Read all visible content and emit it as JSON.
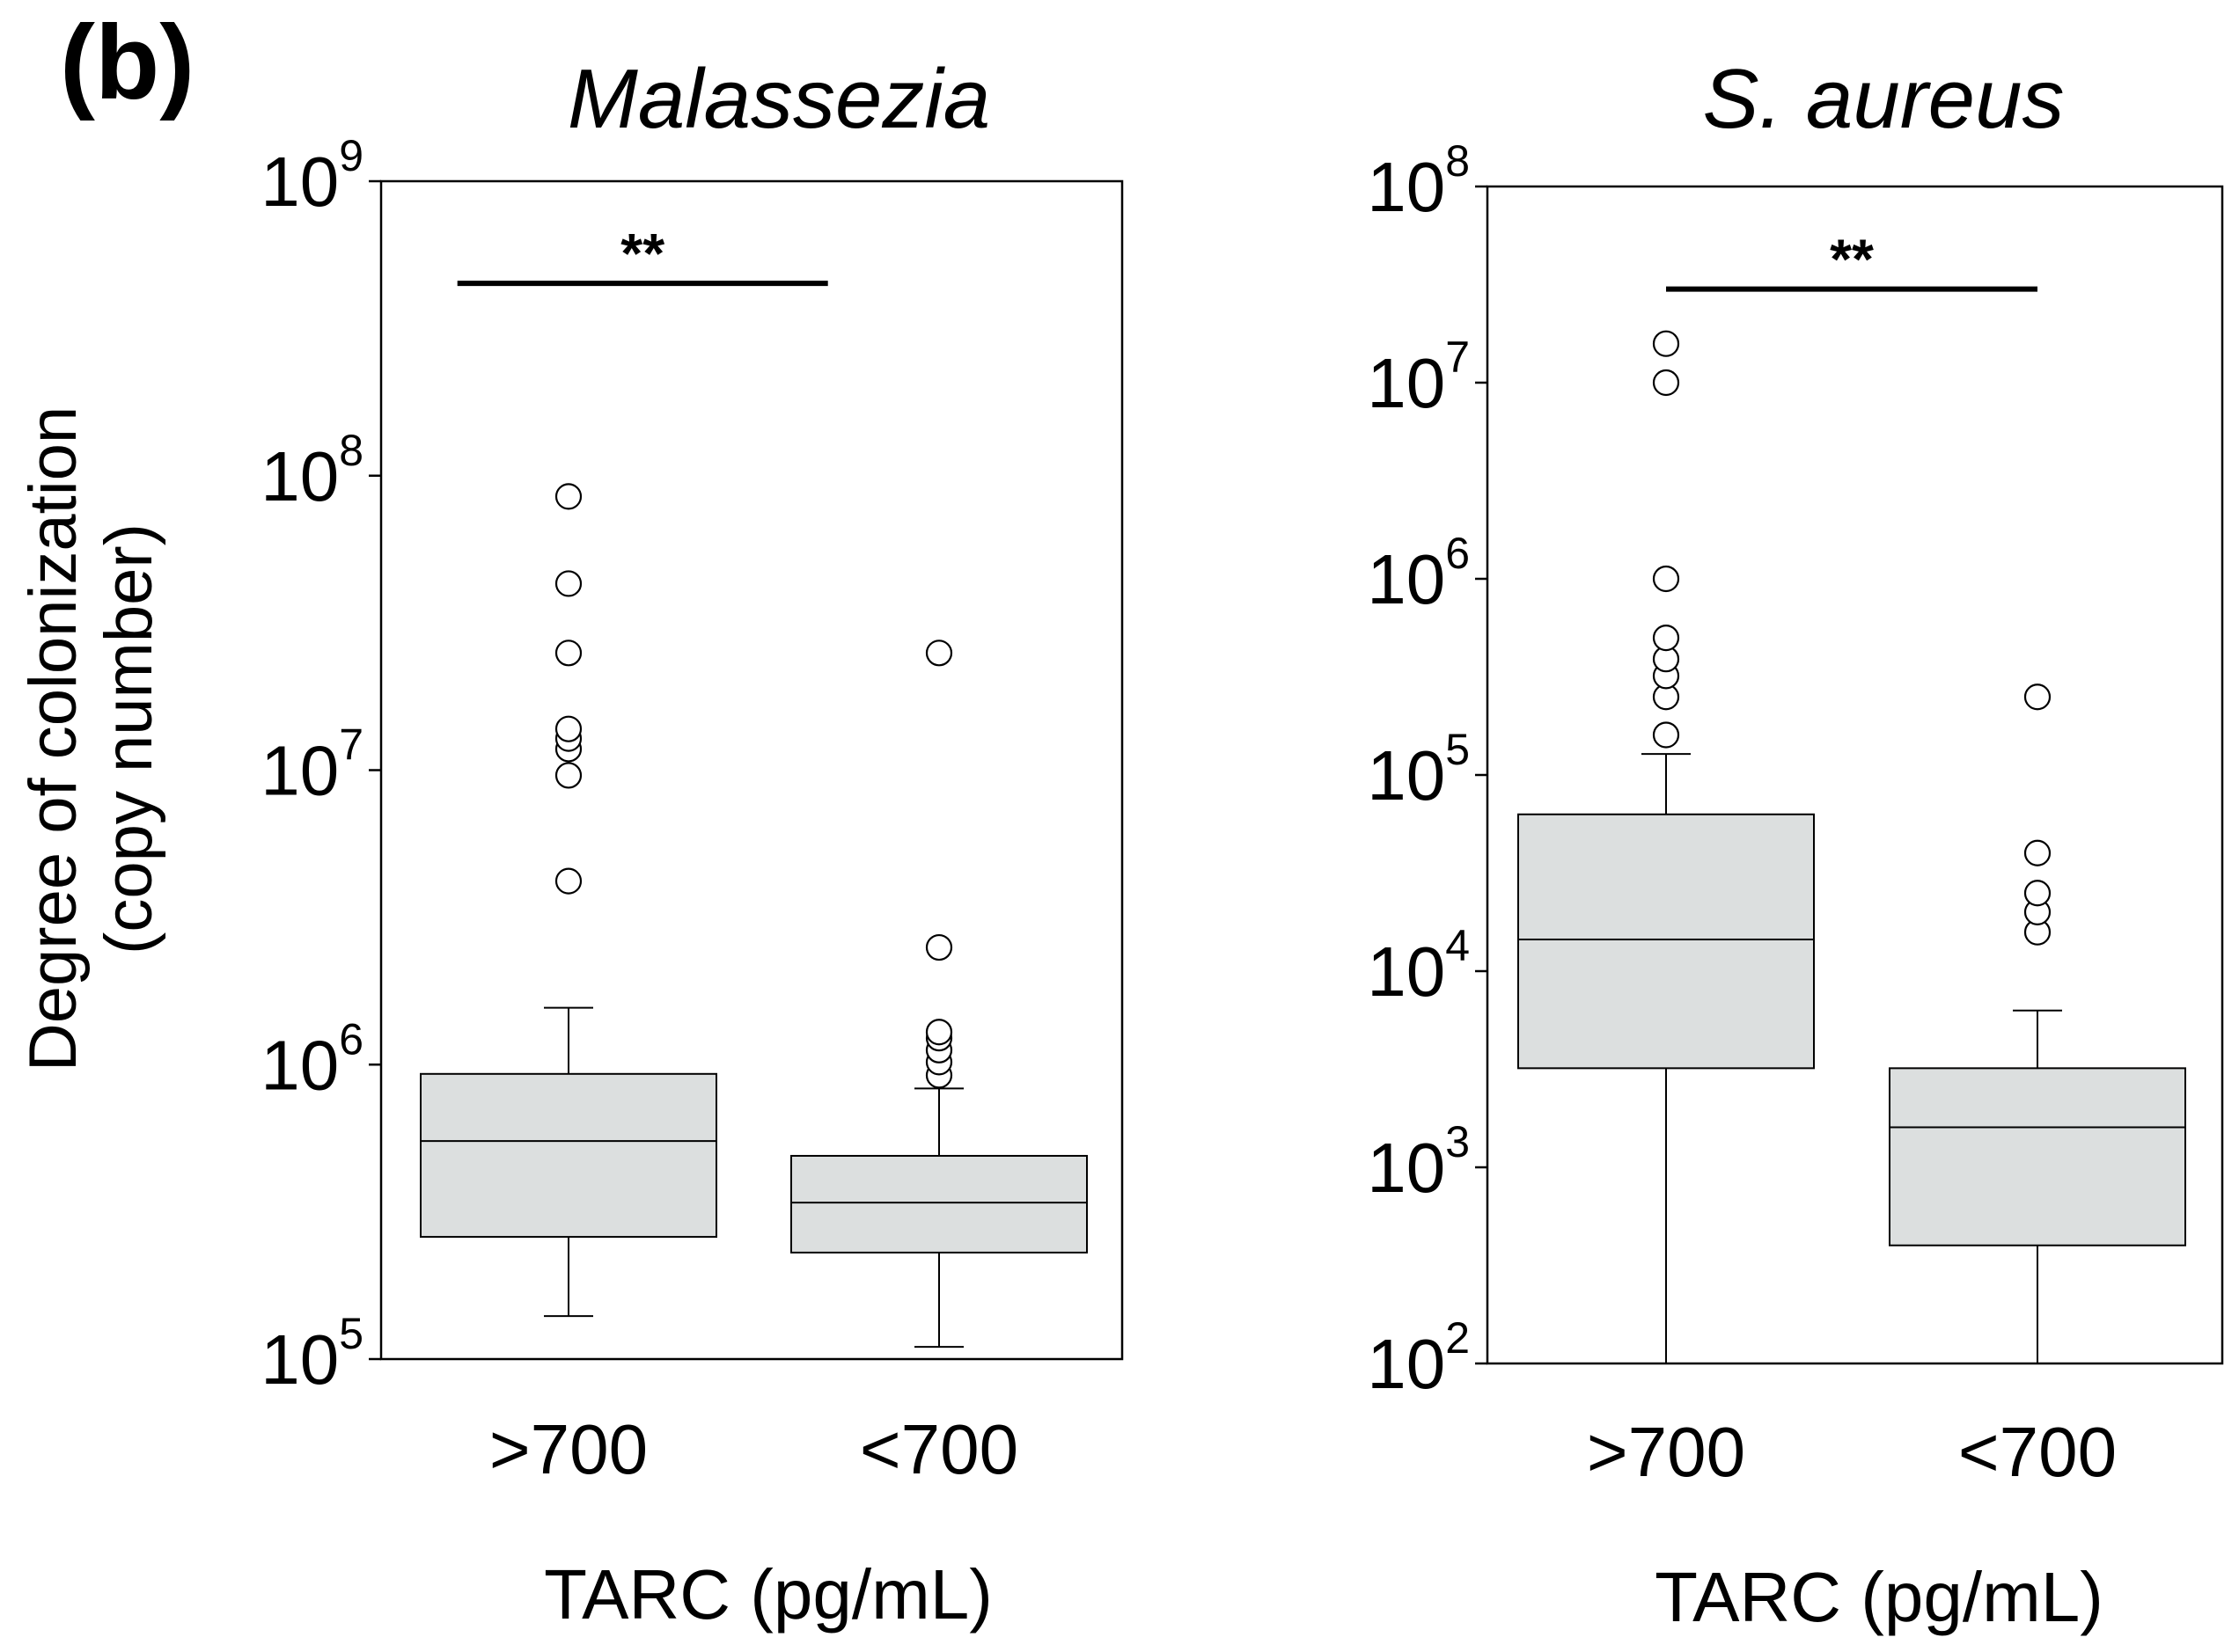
{
  "panel_label": "(b)",
  "y_axis_label_line1": "Degree of colonization",
  "y_axis_label_line2": "(copy number)",
  "chart_data": [
    {
      "type": "box",
      "title": "Malassezia",
      "xlabel": "TARC (pg/mL)",
      "ylabel": "Degree of colonization (copy number)",
      "yscale": "log10",
      "ylim": [
        100000,
        1000000000
      ],
      "yticks": [
        {
          "value": 100000,
          "base": "10",
          "exp": "5"
        },
        {
          "value": 1000000,
          "base": "10",
          "exp": "6"
        },
        {
          "value": 10000000,
          "base": "10",
          "exp": "7"
        },
        {
          "value": 100000000,
          "base": "10",
          "exp": "8"
        },
        {
          "value": 1000000000,
          "base": "10",
          "exp": "9"
        }
      ],
      "categories": [
        ">700",
        "<700"
      ],
      "boxes": [
        {
          "category": ">700",
          "whisker_low": 140000,
          "q1": 260000,
          "median": 550000,
          "q3": 930000,
          "whisker_high": 1560000,
          "outliers": [
            4200000,
            9600000,
            11800000,
            12800000,
            13800000,
            25000000,
            43000000,
            85000000
          ]
        },
        {
          "category": "<700",
          "whisker_low": 110000,
          "q1": 230000,
          "median": 340000,
          "q3": 490000,
          "whisker_high": 830000,
          "outliers": [
            920000,
            1020000,
            1120000,
            1230000,
            1290000,
            2500000,
            25000000
          ]
        }
      ],
      "significance": {
        "label": "**",
        "from": 0.7,
        "to": 1.7,
        "y": 450000000
      }
    },
    {
      "type": "box",
      "title": "S. aureus",
      "xlabel": "TARC (pg/mL)",
      "ylabel": "Degree of colonization (copy number)",
      "yscale": "log10",
      "ylim": [
        100,
        100000000
      ],
      "yticks": [
        {
          "value": 100,
          "base": "10",
          "exp": "2"
        },
        {
          "value": 1000,
          "base": "10",
          "exp": "3"
        },
        {
          "value": 10000,
          "base": "10",
          "exp": "4"
        },
        {
          "value": 100000,
          "base": "10",
          "exp": "5"
        },
        {
          "value": 1000000,
          "base": "10",
          "exp": "6"
        },
        {
          "value": 10000000,
          "base": "10",
          "exp": "7"
        },
        {
          "value": 100000000,
          "base": "10",
          "exp": "8"
        }
      ],
      "categories": [
        ">700",
        "<700"
      ],
      "boxes": [
        {
          "category": ">700",
          "whisker_low": 100,
          "q1": 3200,
          "median": 14500,
          "q3": 63000,
          "whisker_high": 128000,
          "outliers": [
            160000,
            250000,
            320000,
            390000,
            500000,
            1000000,
            10000000,
            15800000
          ]
        },
        {
          "category": "<700",
          "whisker_low": 100,
          "q1": 400,
          "median": 1600,
          "q3": 3200,
          "whisker_high": 6300,
          "outliers": [
            15800,
            20000,
            25000,
            40000,
            250000
          ]
        }
      ],
      "significance": {
        "label": "**",
        "from": 1.0,
        "to": 2.0,
        "y": 30000000
      }
    }
  ]
}
